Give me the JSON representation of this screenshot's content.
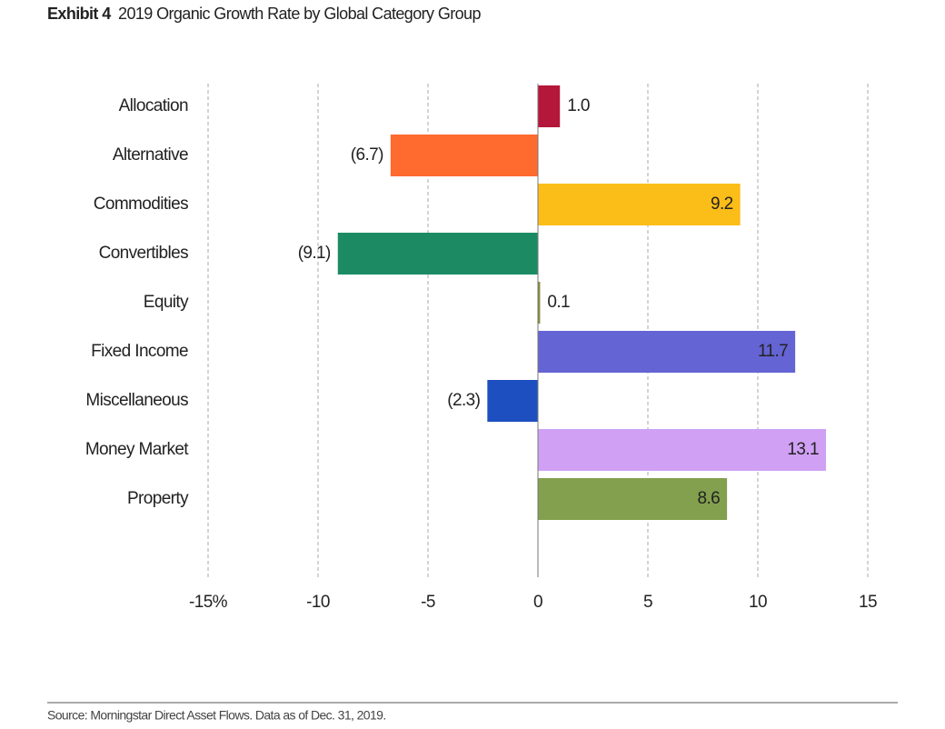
{
  "chart_data": {
    "type": "hbar",
    "exhibit": "Exhibit 4",
    "title": "2019 Organic Growth Rate by Global Category Group",
    "categories": [
      "Allocation",
      "Alternative",
      "Commodities",
      "Convertibles",
      "Equity",
      "Fixed Income",
      "Miscellaneous",
      "Money Market",
      "Property"
    ],
    "values": [
      1.0,
      -6.7,
      9.2,
      -9.1,
      0.1,
      11.7,
      -2.3,
      13.1,
      8.6
    ],
    "value_labels": [
      "1.0",
      "(6.7)",
      "9.2",
      "(9.1)",
      "0.1",
      "11.7",
      "(2.3)",
      "13.1",
      "8.6"
    ],
    "colors": [
      "#b5173a",
      "#ff6a2f",
      "#fbbd18",
      "#1c8b63",
      "#8a8a3a",
      "#6464d4",
      "#1e4fc0",
      "#d0a0f5",
      "#82a04e"
    ],
    "xlim": [
      -15,
      15
    ],
    "xticks": [
      {
        "value": -15,
        "label": "-15%"
      },
      -10,
      -5,
      0,
      5,
      10,
      15
    ],
    "grid": true,
    "source": "Source: Morningstar Direct Asset Flows. Data as of Dec. 31, 2019."
  }
}
